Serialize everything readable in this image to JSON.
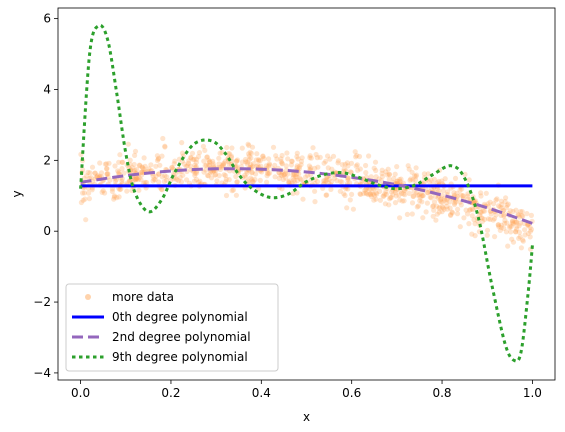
{
  "chart_data": {
    "type": "scatter",
    "title": "",
    "xlabel": "x",
    "ylabel": "y",
    "xlim": [
      -0.05,
      1.05
    ],
    "ylim": [
      -4.2,
      6.3
    ],
    "xticks": [
      0.0,
      0.2,
      0.4,
      0.6,
      0.8,
      1.0
    ],
    "xtick_labels": [
      "0.0",
      "0.2",
      "0.4",
      "0.6",
      "0.8",
      "1.0"
    ],
    "yticks": [
      -4,
      -2,
      0,
      2,
      4,
      6
    ],
    "ytick_labels": [
      "−4",
      "−2",
      "0",
      "2",
      "4",
      "6"
    ],
    "grid": false,
    "legend_position": "lower-left",
    "scatter": {
      "name": "more data",
      "color": "#ffa75a",
      "n_points": 1000,
      "x_range": [
        0.0,
        1.0
      ],
      "approx_trend": [
        [
          0.0,
          1.35
        ],
        [
          0.2,
          1.7
        ],
        [
          0.4,
          1.75
        ],
        [
          0.6,
          1.5
        ],
        [
          0.8,
          1.0
        ],
        [
          1.0,
          0.1
        ]
      ],
      "noise": 0.3
    },
    "series": [
      {
        "name": "0th degree polynomial",
        "color": "#0000ff",
        "style": "solid",
        "x": [
          0.0,
          1.0
        ],
        "y": [
          1.28,
          1.28
        ]
      },
      {
        "name": "2nd degree polynomial",
        "color": "#9467bd",
        "style": "dashed",
        "x": [
          0.0,
          0.1,
          0.2,
          0.3,
          0.4,
          0.5,
          0.6,
          0.7,
          0.8,
          0.9,
          1.0
        ],
        "y": [
          1.38,
          1.57,
          1.7,
          1.76,
          1.75,
          1.67,
          1.52,
          1.31,
          1.02,
          0.66,
          0.22
        ]
      },
      {
        "name": "9th degree polynomial",
        "color": "#2ca02c",
        "style": "dotted",
        "x": [
          0.0,
          0.02,
          0.04,
          0.06,
          0.08,
          0.1,
          0.12,
          0.15,
          0.18,
          0.21,
          0.25,
          0.29,
          0.32,
          0.35,
          0.38,
          0.42,
          0.46,
          0.5,
          0.54,
          0.58,
          0.62,
          0.66,
          0.7,
          0.74,
          0.78,
          0.82,
          0.85,
          0.88,
          0.91,
          0.94,
          0.96,
          0.975,
          0.99,
          1.0
        ],
        "y": [
          1.2,
          5.0,
          5.8,
          5.4,
          3.9,
          2.2,
          1.1,
          0.55,
          0.9,
          1.7,
          2.45,
          2.55,
          2.2,
          1.6,
          1.2,
          0.95,
          1.05,
          1.4,
          1.6,
          1.65,
          1.5,
          1.3,
          1.2,
          1.3,
          1.6,
          1.85,
          1.5,
          0.4,
          -1.5,
          -3.2,
          -3.65,
          -3.4,
          -1.8,
          -0.4
        ]
      }
    ]
  }
}
